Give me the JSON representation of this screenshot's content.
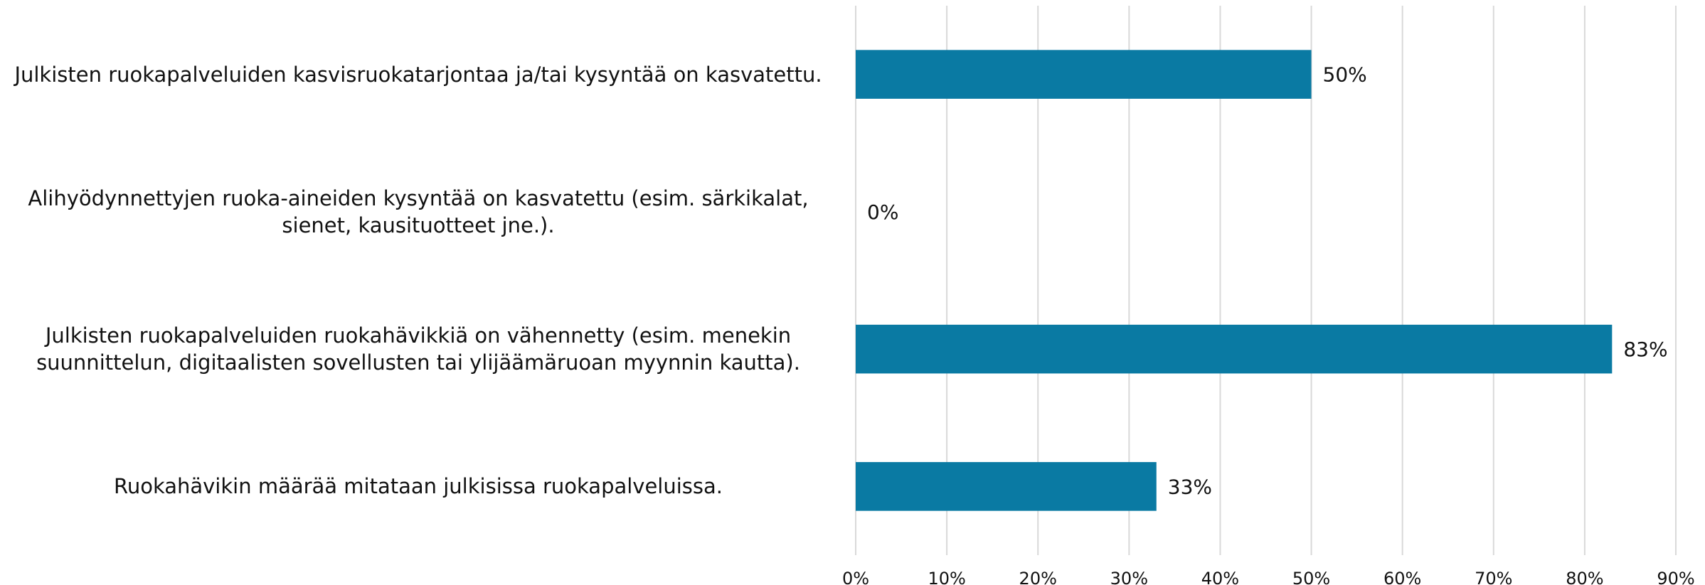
{
  "chart_data": {
    "type": "barh",
    "categories": [
      "Julkisten ruokapalveluiden kasvisruokatarjontaa ja/tai kysyntää on kasvatettu.",
      "Alihyödynnettyjen ruoka-aineiden kysyntää on kasvatettu (esim. särkikalat,\nsienet, kausituotteet jne.).",
      "Julkisten ruokapalveluiden ruokahävikkiä on vähennetty (esim. menekin\nsuunnittelun, digitaalisten sovellusten tai ylijäämäruoan myynnin kautta).",
      "Ruokahävikin määrää mitataan julkisissa ruokapalveluissa."
    ],
    "values": [
      50,
      0,
      83,
      33
    ],
    "value_labels": [
      "50%",
      "0%",
      "83%",
      "33%"
    ],
    "color": "#0a7aa3",
    "xlim": [
      0,
      90
    ],
    "xticks": [
      {
        "value": 0,
        "label": "0%"
      },
      {
        "value": 10,
        "label": "10%"
      },
      {
        "value": 20,
        "label": "20%"
      },
      {
        "value": 30,
        "label": "30%"
      },
      {
        "value": 40,
        "label": "40%"
      },
      {
        "value": 50,
        "label": "50%"
      },
      {
        "value": 60,
        "label": "60%"
      },
      {
        "value": 70,
        "label": "70%"
      },
      {
        "value": 80,
        "label": "80%"
      },
      {
        "value": 90,
        "label": "90%"
      }
    ],
    "grid": true
  }
}
